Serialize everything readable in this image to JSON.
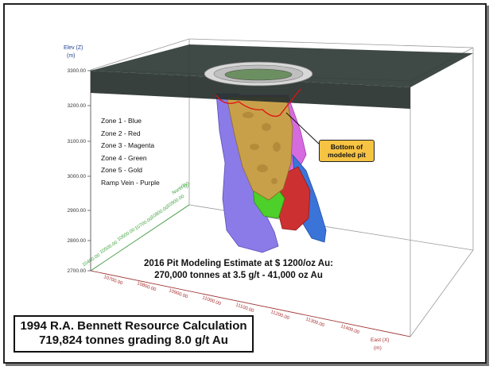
{
  "axes": {
    "elev": {
      "title": "Elev (Z)",
      "unit": "(m)",
      "ticks": [
        "3300.00",
        "3200.00",
        "3100.00",
        "3000.00",
        "2900.00",
        "2800.00",
        "2700.00"
      ],
      "colors": {
        "label": "#1f3f8f"
      }
    },
    "north": {
      "title": "North (Y)",
      "unit": "(m)",
      "ticks": [
        "10900.00",
        "10800.00",
        "10700.00",
        "10600.00",
        "10500.00",
        "10400.00"
      ],
      "color": "#3aa13a"
    },
    "east": {
      "title": "East (X)",
      "unit": "(m)",
      "ticks": [
        "10700.00",
        "10800.00",
        "10900.00",
        "11000.00",
        "11100.00",
        "11200.00",
        "11300.00",
        "11400.00"
      ],
      "color": "#a83232"
    }
  },
  "legend": [
    {
      "label": "Zone 1 - Blue",
      "color": "#3b74d9"
    },
    {
      "label": "Zone 2 - Red",
      "color": "#cc3030"
    },
    {
      "label": "Zone 3 - Magenta",
      "color": "#d66be0"
    },
    {
      "label": "Zone 4 - Green",
      "color": "#4dd02a"
    },
    {
      "label": "Zone 5 - Gold",
      "color": "#c9a04a"
    },
    {
      "label": "Ramp Vein - Purple",
      "color": "#8a7be8"
    }
  ],
  "callout": {
    "line1": "Bottom of",
    "line2": "modeled pit",
    "color": "#f6c343"
  },
  "estimate": {
    "line1": "2016 Pit Modeling Estimate at $ 1200/oz Au:",
    "line2": "270,000 tonnes at 3.5 g/t - 41,000 oz Au"
  },
  "resource": {
    "line1": "1994 R.A. Bennett Resource Calculation",
    "line2": "719,824 tonnes grading 8.0 g/t Au"
  },
  "colors": {
    "surface": "#2f3b37",
    "pit_outline": "#e01010",
    "box": "#9a9a9a"
  }
}
